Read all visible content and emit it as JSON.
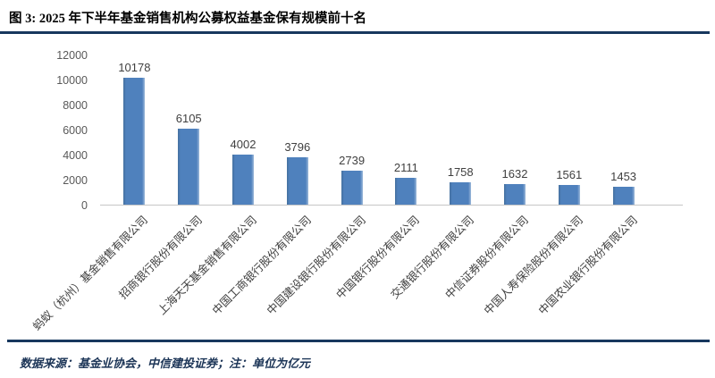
{
  "figure": {
    "title": "图 3: 2025 年下半年基金销售机构公募权益基金保有规模前十名",
    "footer": "数据来源：基金业协会，中信建投证券；注：单位为亿元"
  },
  "colors": {
    "bar": "#4f81bd",
    "rule": "#17375e",
    "axis_line": "#c6c6c6",
    "tick_text": "#595959",
    "label_text": "#404040"
  },
  "chart_data": {
    "type": "bar",
    "title": "2025 年下半年基金销售机构公募权益基金保有规模前十名",
    "categories": [
      "蚂蚁（杭州）基金销售有限公司",
      "招商银行股份有限公司",
      "上海天天基金销售有限公司",
      "中国工商银行股份有限公司",
      "中国建设银行股份有限公司",
      "中国银行股份有限公司",
      "交通银行股份有限公司",
      "中信证券股份有限公司",
      "中国人寿保险股份有限公司",
      "中国农业银行股份有限公司"
    ],
    "values": [
      10178,
      6105,
      4002,
      3796,
      2739,
      2111,
      1758,
      1632,
      1561,
      1453
    ],
    "xlabel": "",
    "ylabel": "",
    "unit": "亿元",
    "ylim": [
      0,
      12000
    ],
    "yticks": [
      0,
      2000,
      4000,
      6000,
      8000,
      10000,
      12000
    ],
    "grid": false,
    "legend": null,
    "data_labels": true,
    "x_label_rotation_deg": 45
  }
}
